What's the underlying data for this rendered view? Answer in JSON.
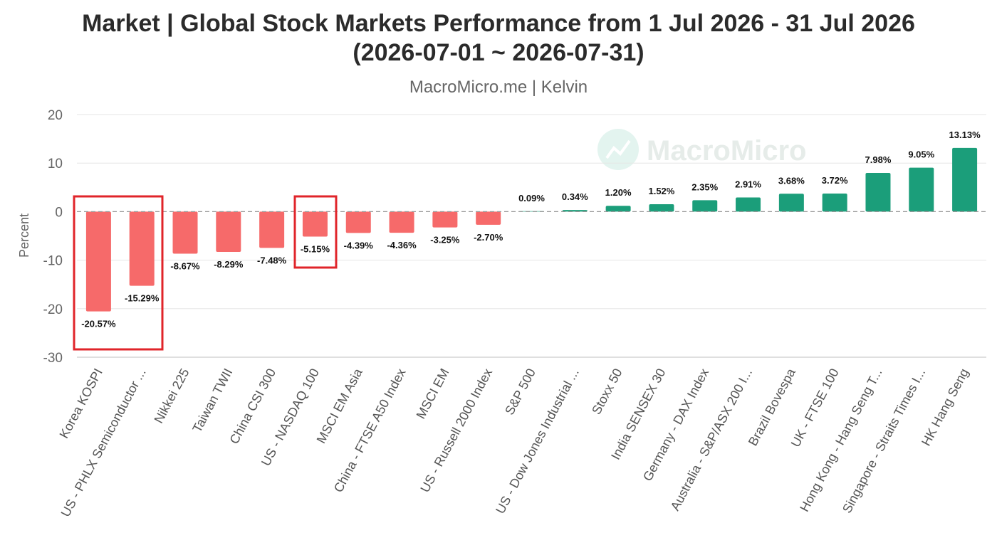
{
  "chart_data": {
    "type": "bar",
    "title": "Market | Global Stock Markets Performance from 1 Jul 2026 - 31 Jul 2026",
    "title_line2": "(2026-07-01 ~ 2026-07-31)",
    "subtitle": "MacroMicro.me | Kelvin",
    "watermark": "MacroMicro",
    "ylabel": "Percent",
    "xlabel": "",
    "ylim": [
      -30,
      20
    ],
    "yticks": [
      20,
      10,
      0,
      -10,
      -20,
      -30
    ],
    "grid": true,
    "legend": "none",
    "colors": {
      "negative": "#f66a6a",
      "positive": "#1b9e7a",
      "highlight_box": "#e0242a",
      "zero_line": "#999999"
    },
    "categories": [
      "Korea KOSPI",
      "US - PHLX Semiconductor ...",
      "Nikkei 225",
      "Taiwan TWII",
      "China CSI 300",
      "US - NASDAQ 100",
      "MSCI EM Asia",
      "China - FTSE A50 Index",
      "MSCI EM",
      "US - Russell 2000 Index",
      "S&P 500",
      "US - Dow Jones Industrial ...",
      "Stoxx 50",
      "India SENSEX 30",
      "Germany - DAX Index",
      "Australia - S&P/ASX 200 I...",
      "Brazil Bovespa",
      "UK - FTSE 100",
      "Hong Kong - Hang Seng T...",
      "Singapore - Straits Times I...",
      "HK Hang Seng"
    ],
    "values": [
      -20.57,
      -15.29,
      -8.67,
      -8.29,
      -7.48,
      -5.15,
      -4.39,
      -4.36,
      -3.25,
      -2.7,
      0.09,
      0.34,
      1.2,
      1.52,
      2.35,
      2.91,
      3.68,
      3.72,
      7.98,
      9.05,
      13.13
    ],
    "data_labels": [
      "-20.57%",
      "-15.29%",
      "-8.67%",
      "-8.29%",
      "-7.48%",
      "-5.15%",
      "-4.39%",
      "-4.36%",
      "-3.25%",
      "-2.70%",
      "0.09%",
      "0.34%",
      "1.20%",
      "1.52%",
      "2.35%",
      "2.91%",
      "3.68%",
      "3.72%",
      "7.98%",
      "9.05%",
      "13.13%"
    ],
    "highlight_groups": [
      {
        "from": "Korea KOSPI",
        "to": "US - PHLX Semiconductor ..."
      },
      {
        "from": "US - NASDAQ 100",
        "to": "US - NASDAQ 100"
      }
    ]
  }
}
